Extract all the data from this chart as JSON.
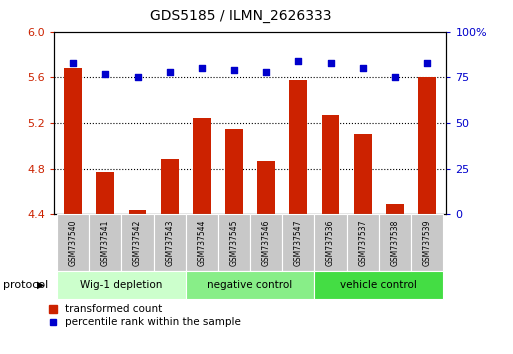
{
  "title": "GDS5185 / ILMN_2626333",
  "samples": [
    "GSM737540",
    "GSM737541",
    "GSM737542",
    "GSM737543",
    "GSM737544",
    "GSM737545",
    "GSM737546",
    "GSM737547",
    "GSM737536",
    "GSM737537",
    "GSM737538",
    "GSM737539"
  ],
  "transformed_count": [
    5.68,
    4.77,
    4.44,
    4.88,
    5.24,
    5.15,
    4.87,
    5.58,
    5.27,
    5.1,
    4.49,
    5.6
  ],
  "percentile_rank": [
    83,
    77,
    75,
    78,
    80,
    79,
    78,
    84,
    83,
    80,
    75,
    83
  ],
  "groups": [
    {
      "label": "Wig-1 depletion",
      "start": 0,
      "end": 4,
      "color": "#ccffcc"
    },
    {
      "label": "negative control",
      "start": 4,
      "end": 8,
      "color": "#88ee88"
    },
    {
      "label": "vehicle control",
      "start": 8,
      "end": 12,
      "color": "#44dd44"
    }
  ],
  "ylim_left": [
    4.4,
    6.0
  ],
  "ylim_right": [
    0,
    100
  ],
  "yticks_left": [
    4.4,
    4.8,
    5.2,
    5.6,
    6.0
  ],
  "yticks_right": [
    0,
    25,
    50,
    75,
    100
  ],
  "bar_color": "#cc2200",
  "dot_color": "#0000cc",
  "protocol_label": "protocol",
  "legend_bar_label": "transformed count",
  "legend_dot_label": "percentile rank within the sample",
  "background_xlabel": "#c8c8c8",
  "title_fontsize": 10,
  "tick_fontsize": 8,
  "label_fontsize": 7
}
